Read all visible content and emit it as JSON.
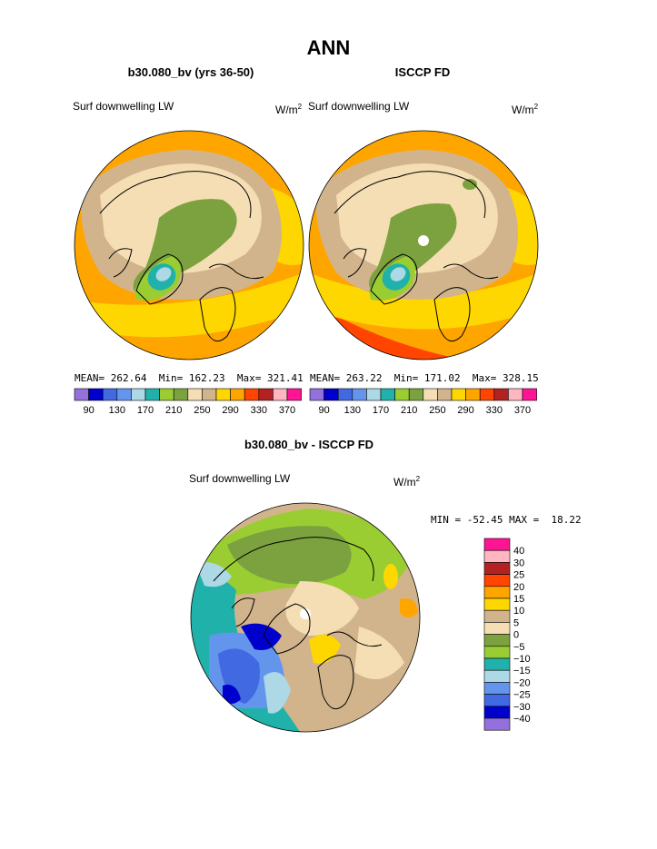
{
  "page": {
    "title": "ANN",
    "panel_left_title": "b30.080_bv (yrs 36-50)",
    "panel_right_title": "ISCCP FD",
    "panel_diff_title": "b30.080_bv - ISCCP FD"
  },
  "chart_data": [
    {
      "type": "heatmap",
      "projection": "polar-stereographic-north",
      "title": "b30.080_bv (yrs 36-50)",
      "variable_label": "Surf downwelling LW",
      "units_base": "W/m",
      "units_exp": "2",
      "stats": {
        "mean_label": "MEAN=",
        "mean": "262.64",
        "min_label": "Min=",
        "min": "162.23",
        "max_label": "Max=",
        "max": "321.41"
      },
      "colorbar": {
        "orientation": "horizontal",
        "tick_labels": [
          "90",
          "130",
          "170",
          "210",
          "250",
          "290",
          "330",
          "370"
        ],
        "colors": [
          "#9370db",
          "#0000cd",
          "#4169e1",
          "#6495ed",
          "#add8e6",
          "#20b2aa",
          "#9acd32",
          "#7ba23f",
          "#f5deb3",
          "#d2b48c",
          "#ffd700",
          "#ffa500",
          "#ff4500",
          "#b22222",
          "#ffb6c1",
          "#ff1493"
        ]
      }
    },
    {
      "type": "heatmap",
      "projection": "polar-stereographic-north",
      "title": "ISCCP FD",
      "variable_label": "Surf downwelling LW",
      "units_base": "W/m",
      "units_exp": "2",
      "stats": {
        "mean_label": "MEAN=",
        "mean": "263.22",
        "min_label": "Min=",
        "min": "171.02",
        "max_label": "Max=",
        "max": "328.15"
      },
      "colorbar": {
        "orientation": "horizontal",
        "tick_labels": [
          "90",
          "130",
          "170",
          "210",
          "250",
          "290",
          "330",
          "370"
        ],
        "colors": [
          "#9370db",
          "#0000cd",
          "#4169e1",
          "#6495ed",
          "#add8e6",
          "#20b2aa",
          "#9acd32",
          "#7ba23f",
          "#f5deb3",
          "#d2b48c",
          "#ffd700",
          "#ffa500",
          "#ff4500",
          "#b22222",
          "#ffb6c1",
          "#ff1493"
        ]
      }
    },
    {
      "type": "heatmap",
      "projection": "polar-stereographic-north",
      "title": "b30.080_bv - ISCCP FD",
      "variable_label": "Surf downwelling LW",
      "units_base": "W/m",
      "units_exp": "2",
      "stats": {
        "min_label": "MIN =",
        "min": "-52.45",
        "max_label": "MAX =",
        "max": "18.22"
      },
      "colorbar": {
        "orientation": "vertical",
        "tick_labels": [
          "40",
          "30",
          "25",
          "20",
          "15",
          "10",
          "5",
          "0",
          "−5",
          "−10",
          "−15",
          "−20",
          "−25",
          "−30",
          "−40"
        ],
        "colors": [
          "#ff1493",
          "#ffb6c1",
          "#b22222",
          "#ff4500",
          "#ffa500",
          "#ffd700",
          "#d2b48c",
          "#f5deb3",
          "#7ba23f",
          "#9acd32",
          "#20b2aa",
          "#add8e6",
          "#6495ed",
          "#4169e1",
          "#0000cd",
          "#9370db"
        ]
      }
    }
  ]
}
